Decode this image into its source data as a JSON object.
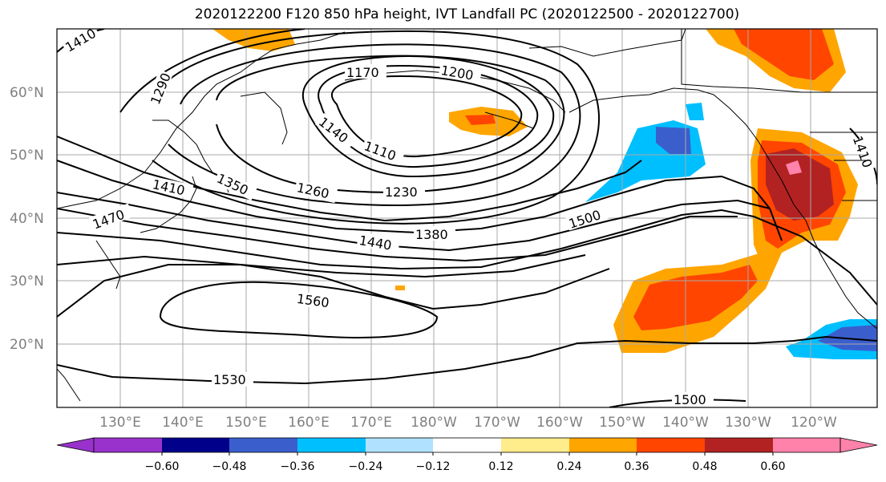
{
  "title": "2020122200 F120 850 hPa height, IVT Landfall PC (2020122500 - 2020122700)",
  "lat_labels": [
    "60°N",
    "50°N",
    "40°N",
    "30°N",
    "20°N"
  ],
  "lon_labels": [
    "130°E",
    "140°E",
    "150°E",
    "160°E",
    "170°E",
    "180°W",
    "170°W",
    "160°W",
    "150°W",
    "140°W",
    "130°W",
    "120°W"
  ],
  "contour_labels": [
    "1410",
    "1290",
    "1170",
    "1200",
    "1140",
    "1110",
    "1350",
    "1410",
    "1260",
    "1230",
    "1470",
    "1380",
    "1440",
    "1500",
    "1560",
    "1530",
    "1500",
    "1410"
  ],
  "colorbar": {
    "ticks": [
      "−0.60",
      "−0.48",
      "−0.36",
      "−0.24",
      "−0.12",
      "0.12",
      "0.24",
      "0.36",
      "0.48",
      "0.60"
    ],
    "colors": [
      "#9932cc",
      "#00008b",
      "#3a5fcd",
      "#00bfff",
      "#b0e2ff",
      "#ffffff",
      "#ffec8b",
      "#ffa500",
      "#ff4500",
      "#b22222",
      "#ff82ab"
    ]
  }
}
